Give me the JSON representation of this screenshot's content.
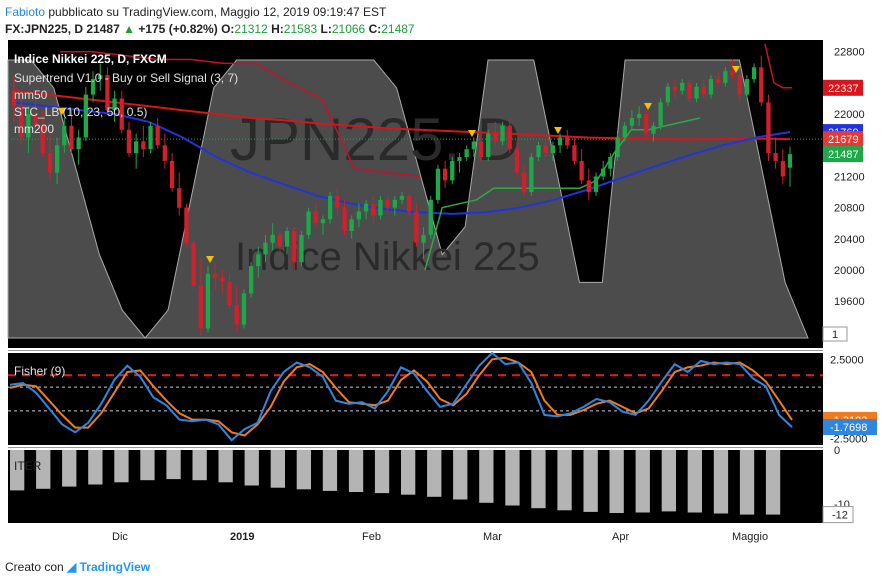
{
  "header": {
    "author": "Fabioto",
    "published_text": "pubblicato su TradingView.com, Maggio 12, 2019 09:19:47 EST",
    "symbol": "FX:JPN225, D",
    "last": "21487",
    "change": "+175 (+0.82%)",
    "o_label": "O:",
    "o": "21312",
    "h_label": "H:",
    "h": "21583",
    "l_label": "L:",
    "l": "21066",
    "c_label": "C:",
    "c": "21487"
  },
  "footer": {
    "prefix": "Creato con",
    "brand": "TradingView"
  },
  "colors": {
    "background": "#000000",
    "up": "#1fa84a",
    "down": "#d0202c",
    "ma50": "#2233dd",
    "ma200": "#d8141c",
    "supertrend_up": "#2fa84a",
    "supertrend_down": "#c8102e",
    "stc_fill": "#8a8a8a",
    "fisher": "#2e86de",
    "fisher_trigger": "#f07b1f",
    "fisher_level": "#e51c23",
    "hist": "#b4b4b4",
    "axis_bg": "#ffffff"
  },
  "chart_data": [
    {
      "type": "candlestick",
      "name": "main",
      "title": "Indice Nikkei 225, D, FXCM",
      "watermark": "JPN225, D",
      "watermark_sub": "Indice Nikkei 225",
      "legend": [
        "Supertrend V1.0 - Buy or Sell Signal (3, 7)",
        "mm50",
        "STC_LB (10, 23, 50, 0.5)",
        "mm200"
      ],
      "y_ticks": [
        22800,
        22000,
        21200,
        20800,
        20400,
        20000,
        19600
      ],
      "y_tick_labels": [
        "22800",
        "22000",
        "21200",
        "20800",
        "20400",
        "20000",
        "19600"
      ],
      "ylim": [
        19000,
        22950
      ],
      "price_labels": [
        {
          "value": 22337,
          "text": "22337",
          "color": "#d8141c"
        },
        {
          "value": 21769,
          "text": "21769",
          "color": "#2233dd"
        },
        {
          "value": 21679,
          "text": "21679",
          "color": "#e53935"
        },
        {
          "value": 21487,
          "text": "21487",
          "color": "#1fa84a"
        }
      ],
      "stc_label": "1",
      "candles": [
        [
          22300,
          22500,
          21900,
          22100
        ],
        [
          22100,
          22250,
          21600,
          21700
        ],
        [
          21700,
          22100,
          21500,
          22000
        ],
        [
          22000,
          22200,
          21750,
          21850
        ],
        [
          21850,
          22050,
          21450,
          21500
        ],
        [
          21500,
          21800,
          21150,
          21250
        ],
        [
          21250,
          21700,
          21100,
          21600
        ],
        [
          21600,
          21950,
          21500,
          21850
        ],
        [
          21850,
          22050,
          21500,
          21550
        ],
        [
          21550,
          21800,
          21350,
          21700
        ],
        [
          21700,
          22350,
          21650,
          22250
        ],
        [
          22250,
          22550,
          22150,
          22450
        ],
        [
          22450,
          22650,
          22300,
          22500
        ],
        [
          22500,
          22600,
          22000,
          22050
        ],
        [
          22050,
          22300,
          21900,
          22200
        ],
        [
          22200,
          22300,
          21750,
          21800
        ],
        [
          21800,
          21900,
          21450,
          21500
        ],
        [
          21500,
          21750,
          21300,
          21650
        ],
        [
          21650,
          21850,
          21450,
          21550
        ],
        [
          21550,
          21900,
          21500,
          21850
        ],
        [
          21850,
          21950,
          21550,
          21600
        ],
        [
          21600,
          21750,
          21300,
          21400
        ],
        [
          21400,
          21500,
          21000,
          21050
        ],
        [
          21050,
          21250,
          20700,
          20800
        ],
        [
          20800,
          20850,
          20300,
          20350
        ],
        [
          20350,
          20400,
          19750,
          19800
        ],
        [
          19800,
          20150,
          19150,
          19250
        ],
        [
          19250,
          20050,
          19200,
          19950
        ],
        [
          19950,
          20100,
          19750,
          19900
        ],
        [
          19900,
          20000,
          19700,
          19850
        ],
        [
          19850,
          19950,
          19500,
          19550
        ],
        [
          19550,
          19800,
          19200,
          19300
        ],
        [
          19300,
          19750,
          19250,
          19700
        ],
        [
          19700,
          20100,
          19650,
          20050
        ],
        [
          20050,
          20300,
          19900,
          20200
        ],
        [
          20200,
          20450,
          20100,
          20350
        ],
        [
          20350,
          20600,
          20250,
          20450
        ],
        [
          20450,
          20500,
          20250,
          20300
        ],
        [
          20300,
          20550,
          20200,
          20500
        ],
        [
          20500,
          20550,
          20000,
          20100
        ],
        [
          20100,
          20500,
          20050,
          20450
        ],
        [
          20450,
          20800,
          20400,
          20750
        ],
        [
          20750,
          20850,
          20550,
          20600
        ],
        [
          20600,
          20700,
          20450,
          20650
        ],
        [
          20650,
          21000,
          20600,
          20950
        ],
        [
          20950,
          21050,
          20700,
          20800
        ],
        [
          20800,
          20900,
          20450,
          20500
        ],
        [
          20500,
          20700,
          20400,
          20650
        ],
        [
          20650,
          20850,
          20550,
          20750
        ],
        [
          20750,
          20900,
          20650,
          20850
        ],
        [
          20850,
          20950,
          20600,
          20700
        ],
        [
          20700,
          20950,
          20650,
          20900
        ],
        [
          20900,
          20950,
          20750,
          20800
        ],
        [
          20800,
          20950,
          20700,
          20900
        ],
        [
          20900,
          21000,
          20850,
          20950
        ],
        [
          20950,
          20970,
          20700,
          20750
        ],
        [
          20750,
          20850,
          20300,
          20350
        ],
        [
          20350,
          20550,
          20150,
          20450
        ],
        [
          20450,
          20950,
          20400,
          20900
        ],
        [
          20900,
          21350,
          20850,
          21300
        ],
        [
          21300,
          21400,
          21050,
          21150
        ],
        [
          21150,
          21450,
          21100,
          21400
        ],
        [
          21400,
          21500,
          21250,
          21450
        ],
        [
          21450,
          21600,
          21400,
          21550
        ],
        [
          21550,
          21700,
          21450,
          21650
        ],
        [
          21650,
          21750,
          21400,
          21450
        ],
        [
          21450,
          21800,
          21400,
          21750
        ],
        [
          21750,
          21900,
          21600,
          21650
        ],
        [
          21650,
          21900,
          21600,
          21850
        ],
        [
          21850,
          21950,
          21500,
          21550
        ],
        [
          21550,
          21650,
          21200,
          21250
        ],
        [
          21250,
          21350,
          20950,
          21000
        ],
        [
          21000,
          21500,
          20950,
          21450
        ],
        [
          21450,
          21650,
          21400,
          21600
        ],
        [
          21600,
          21700,
          21450,
          21500
        ],
        [
          21500,
          21650,
          21400,
          21600
        ],
        [
          21600,
          21750,
          21500,
          21700
        ],
        [
          21700,
          21800,
          21550,
          21600
        ],
        [
          21600,
          21700,
          21350,
          21400
        ],
        [
          21400,
          21550,
          21100,
          21150
        ],
        [
          21150,
          21300,
          20900,
          21000
        ],
        [
          21000,
          21250,
          20950,
          21200
        ],
        [
          21200,
          21400,
          21150,
          21300
        ],
        [
          21300,
          21500,
          21200,
          21450
        ],
        [
          21450,
          21750,
          21400,
          21700
        ],
        [
          21700,
          21900,
          21650,
          21850
        ],
        [
          21850,
          22050,
          21800,
          21950
        ],
        [
          21950,
          22100,
          21850,
          22000
        ],
        [
          22000,
          22050,
          21700,
          21750
        ],
        [
          21750,
          21900,
          21650,
          21850
        ],
        [
          21850,
          22200,
          21800,
          22150
        ],
        [
          22150,
          22400,
          22100,
          22350
        ],
        [
          22350,
          22450,
          22200,
          22300
        ],
        [
          22300,
          22450,
          22250,
          22400
        ],
        [
          22400,
          22450,
          22150,
          22200
        ],
        [
          22200,
          22400,
          22150,
          22350
        ],
        [
          22350,
          22450,
          22200,
          22250
        ],
        [
          22250,
          22500,
          22200,
          22450
        ],
        [
          22450,
          22550,
          22350,
          22400
        ],
        [
          22400,
          22600,
          22350,
          22550
        ],
        [
          22550,
          22700,
          22450,
          22500
        ],
        [
          22500,
          22600,
          22150,
          22250
        ],
        [
          22250,
          22500,
          22200,
          22450
        ],
        [
          22450,
          22650,
          22400,
          22600
        ],
        [
          22600,
          22750,
          22100,
          22150
        ],
        [
          22150,
          22250,
          21400,
          21500
        ],
        [
          21500,
          21700,
          21300,
          21400
        ],
        [
          21400,
          21550,
          21100,
          21200
        ],
        [
          21312,
          21583,
          21066,
          21487
        ]
      ],
      "ma50": [
        22150,
        22100,
        22050,
        22000,
        21900,
        21700,
        21450,
        21250,
        21100,
        20950,
        20850,
        20780,
        20740,
        20720,
        20740,
        20800,
        20900,
        21030,
        21180,
        21330,
        21470,
        21600,
        21700,
        21770
      ],
      "ma200": [
        22300,
        22250,
        22200,
        22150,
        22100,
        22050,
        22000,
        21950,
        21920,
        21880,
        21850,
        21820,
        21800,
        21780,
        21760,
        21740,
        21720,
        21700,
        21690,
        21680,
        21675,
        21680,
        21685,
        21679
      ],
      "supertrend": [
        {
          "trend": "down",
          "values": [
            22800,
            22800,
            22750,
            22700,
            22700,
            22650,
            22650,
            22400,
            22200,
            21300,
            21250,
            21200
          ]
        },
        {
          "trend": "up",
          "values": [
            20000,
            20800,
            20850,
            20900,
            21050,
            21050,
            21050,
            21050,
            21050,
            21050,
            21150,
            21500,
            21800,
            21800,
            21850,
            21900,
            21950
          ]
        },
        {
          "trend": "down",
          "values": [
            22900,
            22400,
            22337,
            22337
          ]
        }
      ],
      "stc": [
        1.0,
        1.0,
        0.9,
        0.6,
        0.3,
        0.1,
        0.0,
        0.1,
        0.5,
        0.9,
        1.0,
        1.0,
        1.0,
        1.0,
        1.0,
        1.0,
        1.0,
        0.9,
        0.6,
        0.3,
        0.4,
        1.0,
        1.0,
        1.0,
        0.6,
        0.2,
        0.2,
        1.0,
        1.0,
        1.0,
        1.0,
        1.0,
        1.0,
        0.6,
        0.2,
        0.0
      ]
    },
    {
      "type": "line",
      "name": "fisher",
      "legend": "Fisher (9)",
      "y_ticks": [
        2.5,
        -2.5
      ],
      "y_tick_labels": [
        "2.5000",
        "-2.5000"
      ],
      "levels": [
        1.5,
        0.75,
        -0.75
      ],
      "ylim": [
        -2.9,
        2.9
      ],
      "value_labels": [
        {
          "value": -1.3193,
          "text": "-1.3193",
          "color": "#f07b1f"
        },
        {
          "value": -1.7698,
          "text": "-1.7698",
          "color": "#2e86de"
        }
      ],
      "fisher": [
        0.9,
        1.0,
        0.4,
        -0.6,
        -1.6,
        -2.1,
        -1.5,
        -0.3,
        1.2,
        2.1,
        1.4,
        0.1,
        -0.4,
        -1.3,
        -1.4,
        -1.3,
        -1.6,
        -2.6,
        -1.9,
        -1.5,
        0.5,
        1.7,
        2.3,
        2.0,
        1.4,
        -0.1,
        -0.3,
        -0.2,
        -0.6,
        0.5,
        2.0,
        1.6,
        0.5,
        -0.5,
        -0.3,
        0.9,
        2.1,
        2.9,
        2.2,
        2.3,
        1.0,
        -1.0,
        -1.1,
        -0.9,
        -0.5,
        0.0,
        -0.2,
        -0.8,
        -1.0,
        -0.1,
        1.1,
        2.2,
        1.7,
        2.4,
        2.2,
        2.3,
        2.2,
        1.3,
        0.8,
        -1.0,
        -1.77
      ],
      "trigger": [
        0.7,
        0.9,
        0.8,
        -0.1,
        -1.0,
        -1.8,
        -1.8,
        -0.9,
        0.4,
        1.7,
        1.8,
        0.8,
        -0.1,
        -0.9,
        -1.3,
        -1.3,
        -1.4,
        -2.1,
        -2.3,
        -1.6,
        -0.5,
        1.1,
        2.0,
        2.2,
        1.7,
        0.7,
        -0.2,
        -0.3,
        -0.4,
        -0.1,
        1.2,
        1.8,
        1.1,
        0.0,
        -0.4,
        0.3,
        1.5,
        2.5,
        2.6,
        2.3,
        1.7,
        -0.1,
        -1.0,
        -1.0,
        -0.7,
        -0.3,
        -0.1,
        -0.5,
        -0.9,
        -0.6,
        0.5,
        1.7,
        2.0,
        2.1,
        2.3,
        2.2,
        2.3,
        1.8,
        1.1,
        -0.1,
        -1.32
      ]
    },
    {
      "type": "bar",
      "name": "iter",
      "legend": "ITER",
      "y_ticks": [
        0,
        -10
      ],
      "y_tick_labels": [
        "0",
        "-10"
      ],
      "ylim": [
        -13,
        0
      ],
      "value_label": {
        "value": -12,
        "text": "-12"
      },
      "values": [
        -7.5,
        -7.2,
        -6.8,
        -6.4,
        -6.0,
        -5.6,
        -5.4,
        -5.6,
        -6.0,
        -6.6,
        -7.0,
        -7.3,
        -7.6,
        -7.8,
        -8.0,
        -8.3,
        -8.7,
        -9.2,
        -9.8,
        -10.3,
        -10.8,
        -11.2,
        -11.5,
        -11.7,
        -11.6,
        -11.4,
        -11.6,
        -11.8,
        -12.0,
        -12.0
      ]
    },
    {
      "type": "x-axis",
      "categories": [
        "Dic",
        "2019",
        "Feb",
        "Mar",
        "Apr",
        "Maggio"
      ]
    }
  ]
}
